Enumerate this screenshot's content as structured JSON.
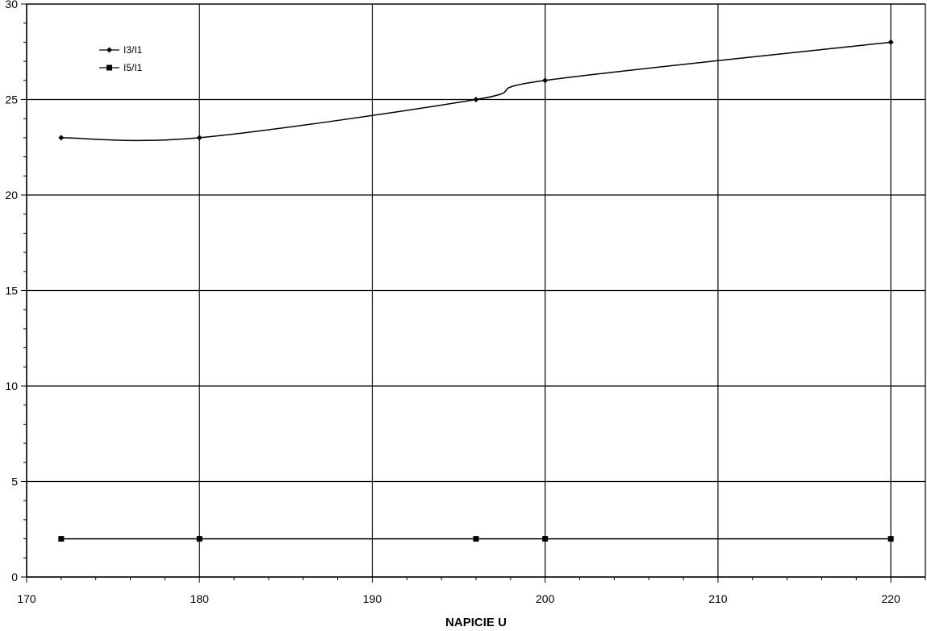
{
  "chart_data": {
    "type": "line",
    "title": "",
    "xlabel": "NAPICIE U",
    "ylabel": "",
    "xlim": [
      170,
      222
    ],
    "ylim": [
      0,
      30
    ],
    "x_ticks": [
      170,
      180,
      190,
      200,
      210,
      220
    ],
    "y_ticks": [
      0,
      5,
      10,
      15,
      20,
      25,
      30
    ],
    "grid": true,
    "legend_position": "top-left",
    "series": [
      {
        "name": "I3/I1",
        "marker": "diamond",
        "smooth": true,
        "x": [
          172,
          180,
          196,
          200,
          220
        ],
        "y": [
          23,
          23,
          25,
          26,
          28
        ]
      },
      {
        "name": "I5/I1",
        "marker": "square",
        "smooth": false,
        "x": [
          172,
          180,
          196,
          200,
          220
        ],
        "y": [
          2,
          2,
          2,
          2,
          2
        ]
      }
    ]
  }
}
